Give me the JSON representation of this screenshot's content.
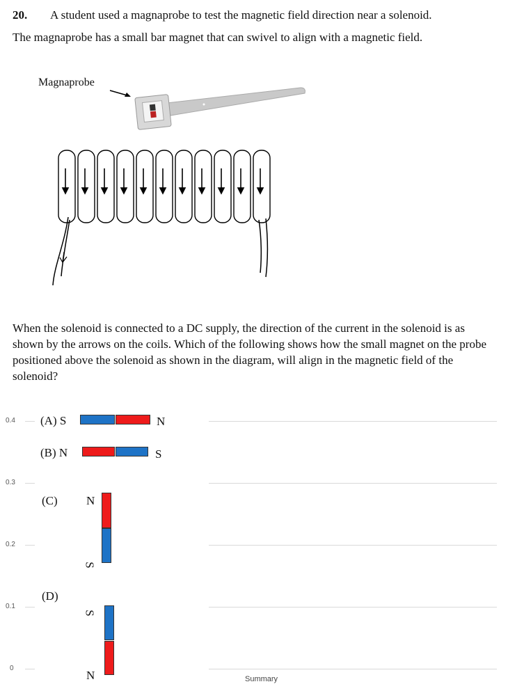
{
  "question": {
    "number": "20.",
    "line1": "A student used a magnaprobe to test the magnetic field direction near a solenoid.",
    "line2": "The magnaprobe has a small bar magnet that can swivel to align with a magnetic field.",
    "figure_caption": "Magnaprobe",
    "paragraph": "When the solenoid is connected to a DC supply, the direction of the current in the solenoid is as shown by the arrows on the coils. Which of the following shows how the small magnet on the probe positioned above the solenoid as shown in the diagram, will align in the magnetic field of the solenoid?"
  },
  "options": [
    {
      "label": "(A) S",
      "end_label": "N"
    },
    {
      "label": "(B) N",
      "end_label": "S"
    },
    {
      "label": "(C)",
      "top_label": "N",
      "bottom_label": "S"
    },
    {
      "label": "(D)",
      "top_label": "S",
      "bottom_label": "N"
    }
  ],
  "chart_overlay": {
    "y_ticks": [
      "0.4",
      "0.3",
      "0.2",
      "0.1",
      "0"
    ],
    "x_label": "Summary"
  },
  "colors": {
    "blue": "#1e73c6",
    "red": "#ee1b1b"
  }
}
